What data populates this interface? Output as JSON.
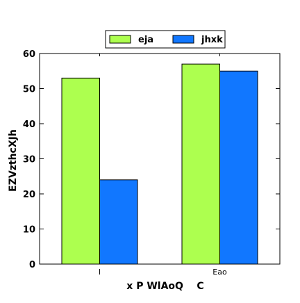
{
  "chart_data": {
    "type": "bar",
    "categories": [
      "l",
      "Eao"
    ],
    "series": [
      {
        "name": "eja",
        "values": [
          53,
          57
        ],
        "color": "#adff4f"
      },
      {
        "name": "jhxk",
        "values": [
          24,
          55
        ],
        "color": "#1177ff"
      }
    ],
    "xlabel": "x P WlAoQ    C",
    "ylabel": "EZVzthcXJh",
    "ylim": [
      0,
      60
    ],
    "yticks": [
      0,
      10,
      20,
      30,
      40,
      50,
      60
    ],
    "grid": false,
    "legend_position": "top-center"
  }
}
